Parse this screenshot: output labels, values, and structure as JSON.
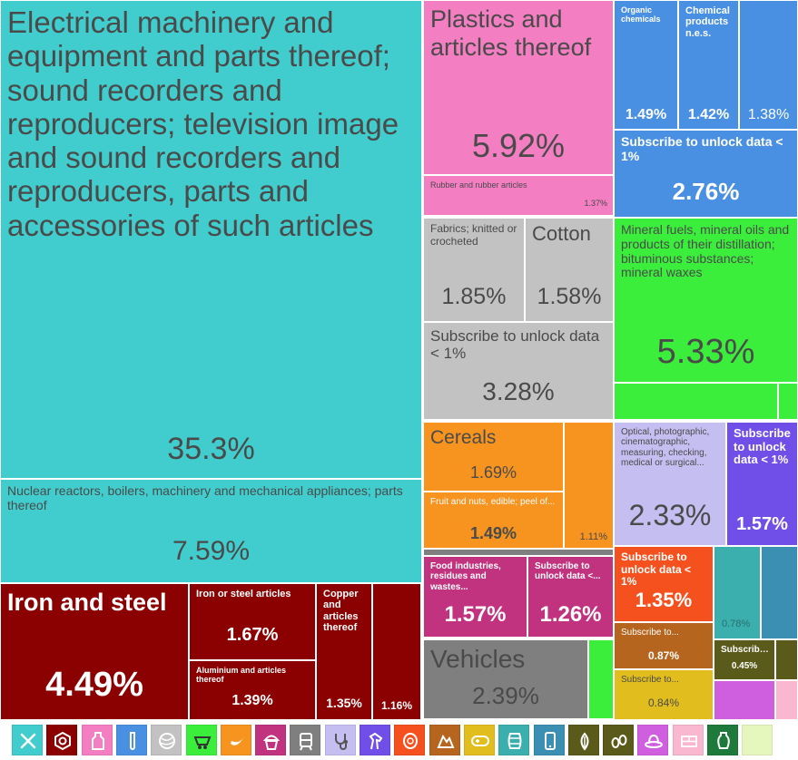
{
  "chart_data": {
    "type": "treemap",
    "items": [
      {
        "id": "electrical-machinery",
        "label": "Electrical machinery and equipment and parts thereof; sound recorders and reproducers; television image and sound recorders and reproducers, parts and accessories of such articles",
        "value": "35.3%",
        "color": "#41CDCD"
      },
      {
        "id": "nuclear-reactors",
        "label": "Nuclear reactors, boilers, machinery and mechanical appliances; parts thereof",
        "value": "7.59%",
        "color": "#41CDCD"
      },
      {
        "id": "iron-and-steel",
        "label": "Iron and steel",
        "value": "4.49%",
        "color": "#8B0000"
      },
      {
        "id": "iron-or-steel-articles",
        "label": "Iron or steel articles",
        "value": "1.67%",
        "color": "#8B0000"
      },
      {
        "id": "aluminium",
        "label": "Aluminium and articles thereof",
        "value": "1.39%",
        "color": "#8B0000"
      },
      {
        "id": "copper",
        "label": "Copper and articles thereof",
        "value": "1.35%",
        "color": "#8B0000"
      },
      {
        "id": "metals-small",
        "label": "",
        "value": "1.16%",
        "color": "#8B0000"
      },
      {
        "id": "plastics",
        "label": "Plastics and articles thereof",
        "value": "5.92%",
        "color": "#F47EC2"
      },
      {
        "id": "rubber",
        "label": "Rubber and rubber articles",
        "value": "1.37%",
        "color": "#F47EC2"
      },
      {
        "id": "organic-chemicals",
        "label": "Organic chemicals",
        "value": "1.49%",
        "color": "#4A90E2"
      },
      {
        "id": "chemical-products",
        "label": "Chemical products n.e.s.",
        "value": "1.42%",
        "color": "#4A90E2"
      },
      {
        "id": "chemicals-small",
        "label": "",
        "value": "1.38%",
        "color": "#4A90E2"
      },
      {
        "id": "chemicals-subscribe",
        "label": "Subscribe to unlock data < 1%",
        "value": "2.76%",
        "color": "#4A90E2"
      },
      {
        "id": "fabrics-knitted",
        "label": "Fabrics; knitted or crocheted",
        "value": "1.85%",
        "color": "#C2C2C2"
      },
      {
        "id": "cotton",
        "label": "Cotton",
        "value": "1.58%",
        "color": "#C2C2C2"
      },
      {
        "id": "textiles-subscribe",
        "label": "Subscribe to unlock data < 1%",
        "value": "3.28%",
        "color": "#C2C2C2"
      },
      {
        "id": "mineral-fuels",
        "label": "Mineral fuels, mineral oils and products of their distillation; bituminous substances; mineral waxes",
        "value": "5.33%",
        "color": "#3CEE3C"
      },
      {
        "id": "cereals",
        "label": "Cereals",
        "value": "1.69%",
        "color": "#F79420"
      },
      {
        "id": "fruit-and-nuts",
        "label": "Fruit and nuts, edible; peel of...",
        "value": "1.49%",
        "color": "#F79420"
      },
      {
        "id": "vegetable-small",
        "label": "",
        "value": "1.11%",
        "color": "#F79420"
      },
      {
        "id": "optical",
        "label": "Optical, photographic, cinematographic, measuring, checking, medical or surgical...",
        "value": "2.33%",
        "color": "#C5BEF0"
      },
      {
        "id": "instruments-subscribe",
        "label": "Subscribe to unlock data < 1%",
        "value": "1.57%",
        "color": "#6F4FE8"
      },
      {
        "id": "food-industries",
        "label": "Food industries, residues and wastes...",
        "value": "1.57%",
        "color": "#C1337F"
      },
      {
        "id": "foodstuffs-subscribe",
        "label": "Subscribe to unlock data <...",
        "value": "1.26%",
        "color": "#C1337F"
      },
      {
        "id": "wood-subscribe",
        "label": "Subscribe to unlock data < 1%",
        "value": "1.35%",
        "color": "#F4511E"
      },
      {
        "id": "vehicles",
        "label": "Vehicles",
        "value": "2.39%",
        "color": "#7F7F7F"
      },
      {
        "id": "animal-subscribe",
        "label": "Subscribe to...",
        "value": "0.87%",
        "color": "#B5651D"
      },
      {
        "id": "stone-subscribe",
        "label": "Subscribe to...",
        "value": "0.84%",
        "color": "#E1BD1D"
      },
      {
        "id": "footwear-subscribe",
        "label": "Subscribe...",
        "value": "0.45%",
        "color": "#5A5A1A"
      },
      {
        "id": "teal-small",
        "label": "",
        "value": "0.78%",
        "color": "#3AAFAE"
      }
    ],
    "minor_colors": [
      "#3CEE3C",
      "#3CEE3C",
      "#3CEE3C",
      "#7F7F7F",
      "#3A8FB3",
      "#5A5A1A",
      "#D05FE0",
      "#F9B8CF",
      "#F4511E",
      "#B5651D",
      "#5A5A1A",
      "#E1BD1D"
    ],
    "legend": [
      {
        "icon": "tools-icon",
        "color": "#41CDCD"
      },
      {
        "icon": "nut-icon",
        "color": "#8B0000"
      },
      {
        "icon": "bottle-icon",
        "color": "#F47EC2"
      },
      {
        "icon": "flask-icon",
        "color": "#4A90E2"
      },
      {
        "icon": "yarn-icon",
        "color": "#C2C2C2"
      },
      {
        "icon": "minecart-icon",
        "color": "#3CEE3C"
      },
      {
        "icon": "banana-icon",
        "color": "#F79420"
      },
      {
        "icon": "cupcake-icon",
        "color": "#C1337F"
      },
      {
        "icon": "train-icon",
        "color": "#7F7F7F"
      },
      {
        "icon": "stethoscope-icon",
        "color": "#C5BEF0"
      },
      {
        "icon": "horse-icon",
        "color": "#6F4FE8"
      },
      {
        "icon": "wood-log-icon",
        "color": "#F4511E"
      },
      {
        "icon": "rock-icon",
        "color": "#B5651D"
      },
      {
        "icon": "gamepad-icon",
        "color": "#E1BD1D"
      },
      {
        "icon": "barrel-icon",
        "color": "#3AAFAE"
      },
      {
        "icon": "phone-icon",
        "color": "#3A8FB3"
      },
      {
        "icon": "leaf-icon",
        "color": "#5A5A1A"
      },
      {
        "icon": "seeds-icon",
        "color": "#5A5A1A"
      },
      {
        "icon": "hat-icon",
        "color": "#D05FE0"
      },
      {
        "icon": "bricks-icon",
        "color": "#F9B8CF"
      },
      {
        "icon": "vase-icon",
        "color": "#1E7A3A"
      },
      {
        "icon": "blank-icon",
        "color": "#E6F7BE"
      }
    ]
  }
}
